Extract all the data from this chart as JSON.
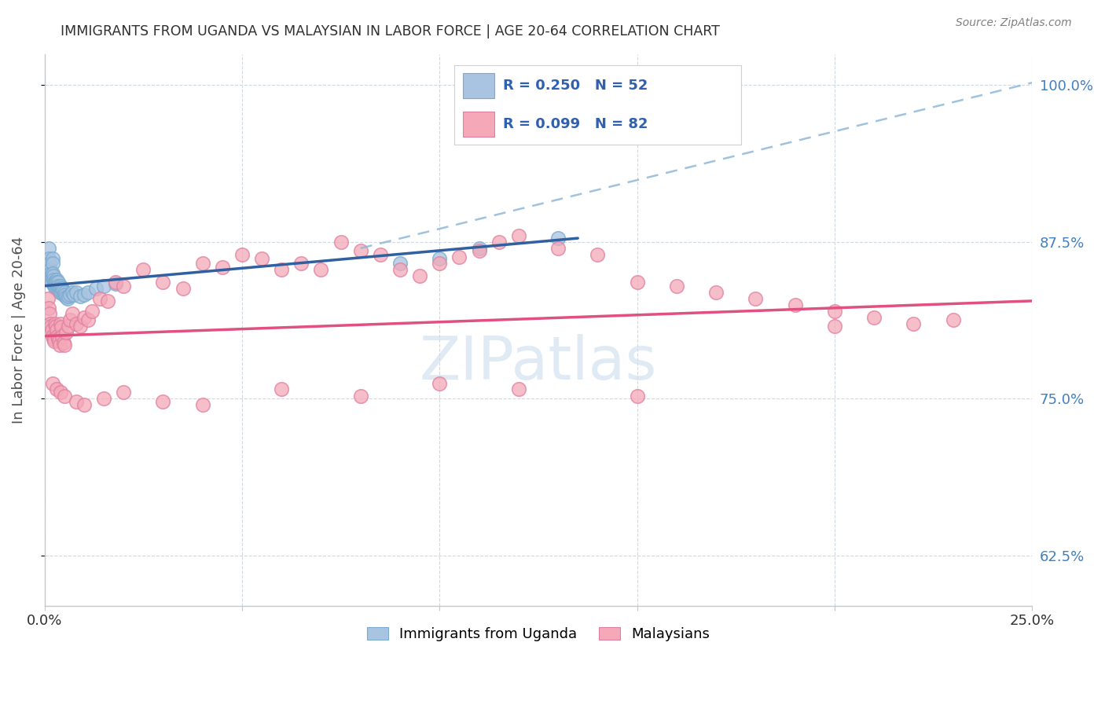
{
  "title": "IMMIGRANTS FROM UGANDA VS MALAYSIAN IN LABOR FORCE | AGE 20-64 CORRELATION CHART",
  "source": "Source: ZipAtlas.com",
  "ylabel": "In Labor Force | Age 20-64",
  "xlim": [
    0.0,
    0.25
  ],
  "ylim": [
    0.585,
    1.025
  ],
  "xticks": [
    0.0,
    0.05,
    0.1,
    0.15,
    0.2,
    0.25
  ],
  "xticklabels": [
    "0.0%",
    "",
    "",
    "",
    "",
    "25.0%"
  ],
  "yticks_right": [
    0.625,
    0.75,
    0.875,
    1.0
  ],
  "ytick_right_labels": [
    "62.5%",
    "75.0%",
    "87.5%",
    "100.0%"
  ],
  "legend_label1": "Immigrants from Uganda",
  "legend_label2": "Malaysians",
  "blue_color": "#a8c4e0",
  "pink_color": "#f4a8b8",
  "blue_line_color": "#3060a0",
  "pink_line_color": "#e05080",
  "blue_dash_color": "#90b8d8",
  "watermark": "ZIPatlas",
  "background_color": "#ffffff",
  "grid_color": "#d0d8e0",
  "title_color": "#303030",
  "axis_label_color": "#505050",
  "right_tick_color": "#4080c0",
  "uganda_x": [
    0.0008,
    0.001,
    0.001,
    0.0012,
    0.0014,
    0.0015,
    0.0016,
    0.0017,
    0.0018,
    0.002,
    0.002,
    0.002,
    0.0022,
    0.0023,
    0.0024,
    0.0025,
    0.0026,
    0.0027,
    0.0028,
    0.003,
    0.0031,
    0.0032,
    0.0033,
    0.0034,
    0.0035,
    0.0036,
    0.0038,
    0.004,
    0.0041,
    0.0043,
    0.0045,
    0.0046,
    0.0048,
    0.005,
    0.0052,
    0.0055,
    0.0058,
    0.006,
    0.0065,
    0.007,
    0.0075,
    0.008,
    0.009,
    0.01,
    0.011,
    0.013,
    0.015,
    0.018,
    0.09,
    0.1,
    0.11,
    0.13
  ],
  "uganda_y": [
    0.855,
    0.87,
    0.862,
    0.858,
    0.853,
    0.85,
    0.848,
    0.845,
    0.843,
    0.862,
    0.858,
    0.85,
    0.848,
    0.845,
    0.843,
    0.84,
    0.843,
    0.84,
    0.838,
    0.845,
    0.843,
    0.84,
    0.838,
    0.843,
    0.84,
    0.838,
    0.835,
    0.84,
    0.838,
    0.835,
    0.838,
    0.836,
    0.833,
    0.835,
    0.833,
    0.831,
    0.83,
    0.832,
    0.833,
    0.835,
    0.833,
    0.835,
    0.832,
    0.833,
    0.835,
    0.838,
    0.84,
    0.842,
    0.858,
    0.862,
    0.87,
    0.878
  ],
  "malaysian_x": [
    0.0008,
    0.001,
    0.0012,
    0.0014,
    0.0016,
    0.0018,
    0.002,
    0.0022,
    0.0024,
    0.0026,
    0.0028,
    0.003,
    0.0032,
    0.0034,
    0.0036,
    0.0038,
    0.004,
    0.0042,
    0.0045,
    0.0048,
    0.005,
    0.0055,
    0.006,
    0.0065,
    0.007,
    0.008,
    0.009,
    0.01,
    0.011,
    0.012,
    0.014,
    0.016,
    0.018,
    0.02,
    0.025,
    0.03,
    0.035,
    0.04,
    0.045,
    0.05,
    0.055,
    0.06,
    0.065,
    0.07,
    0.075,
    0.08,
    0.085,
    0.09,
    0.095,
    0.1,
    0.105,
    0.11,
    0.115,
    0.12,
    0.13,
    0.14,
    0.15,
    0.16,
    0.17,
    0.18,
    0.19,
    0.2,
    0.21,
    0.22,
    0.23,
    0.002,
    0.003,
    0.004,
    0.005,
    0.008,
    0.01,
    0.015,
    0.02,
    0.03,
    0.04,
    0.06,
    0.08,
    0.1,
    0.12,
    0.15,
    0.2
  ],
  "malaysian_y": [
    0.83,
    0.822,
    0.818,
    0.81,
    0.808,
    0.805,
    0.8,
    0.798,
    0.796,
    0.81,
    0.808,
    0.805,
    0.8,
    0.798,
    0.796,
    0.793,
    0.81,
    0.807,
    0.8,
    0.795,
    0.793,
    0.803,
    0.808,
    0.813,
    0.818,
    0.81,
    0.808,
    0.815,
    0.813,
    0.82,
    0.83,
    0.828,
    0.843,
    0.84,
    0.853,
    0.843,
    0.838,
    0.858,
    0.855,
    0.865,
    0.862,
    0.853,
    0.858,
    0.853,
    0.875,
    0.868,
    0.865,
    0.853,
    0.848,
    0.858,
    0.863,
    0.868,
    0.875,
    0.88,
    0.87,
    0.865,
    0.843,
    0.84,
    0.835,
    0.83,
    0.825,
    0.82,
    0.815,
    0.81,
    0.813,
    0.762,
    0.758,
    0.755,
    0.752,
    0.748,
    0.745,
    0.75,
    0.755,
    0.748,
    0.745,
    0.758,
    0.752,
    0.762,
    0.758,
    0.752,
    0.808
  ],
  "blue_line_x0": 0.0,
  "blue_line_y0": 0.84,
  "blue_line_x1": 0.135,
  "blue_line_y1": 0.878,
  "dash_line_x0": 0.08,
  "dash_line_y0": 0.87,
  "dash_line_x1": 0.25,
  "dash_line_y1": 1.002,
  "pink_line_x0": 0.0,
  "pink_line_y0": 0.8,
  "pink_line_x1": 0.25,
  "pink_line_y1": 0.828
}
